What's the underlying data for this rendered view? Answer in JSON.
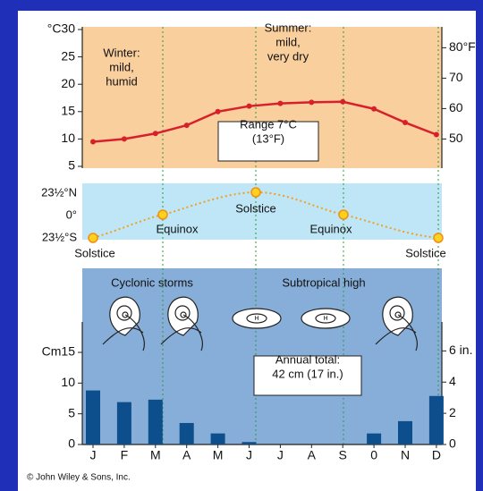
{
  "chart_data": [
    {
      "type": "line",
      "color": "#d8202a",
      "values": [
        9.5,
        10,
        11,
        12.5,
        15,
        16,
        16.5,
        16.7,
        16.8,
        15.5,
        13,
        10.8
      ],
      "ylim": [
        5,
        30
      ],
      "yticks": [
        5,
        10,
        15,
        20,
        25,
        {
          "value": 30,
          "label": "°C30"
        }
      ],
      "y2lim": [
        41,
        86
      ],
      "y2ticks": [
        50,
        60,
        70,
        {
          "value": 80,
          "label": "80°F"
        }
      ],
      "annotations": [
        [
          "Winter:",
          "mild,",
          "humid"
        ],
        [
          "Summer:",
          "mild,",
          "very dry"
        ],
        [
          "Range 7°C",
          "(13°F)"
        ]
      ]
    },
    {
      "type": "bar",
      "color": "#0d4f8c",
      "categories": [
        "J",
        "F",
        "M",
        "A",
        "M",
        "J",
        "J",
        "A",
        "S",
        "0",
        "N",
        "D"
      ],
      "values": [
        8.8,
        6.9,
        7.3,
        3.5,
        1.8,
        0.4,
        0,
        0,
        0,
        1.8,
        3.8,
        7.9
      ],
      "ylim": [
        0,
        15
      ],
      "yticks": [
        0,
        5,
        10,
        {
          "value": 15,
          "label": "Cm15"
        }
      ],
      "y2lim": [
        0,
        5.906
      ],
      "y2ticks": [
        0,
        2,
        4,
        {
          "value": 6,
          "label": "6 in."
        }
      ],
      "annotations": [
        [
          "Annual total:",
          "42 cm (17 in.)"
        ]
      ]
    }
  ],
  "sun_path": {
    "yticks": [
      "23½°N",
      "0°",
      "23½°S"
    ],
    "labels": [
      "Solstice",
      "Equinox",
      "Solstice",
      "Equinox",
      "Solstice"
    ]
  },
  "zones": {
    "labels": [
      "Cyclonic storms",
      "Subtropical high"
    ],
    "high": "H"
  },
  "credit": "© John Wiley & Sons, Inc."
}
